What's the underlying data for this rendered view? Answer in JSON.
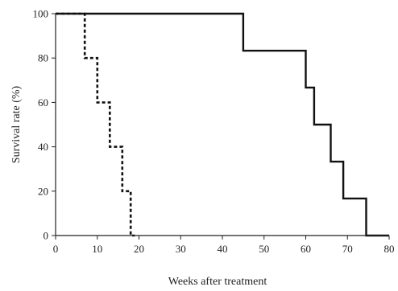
{
  "chart_data": {
    "type": "line",
    "title": "",
    "xlabel": "Weeks after treatment",
    "ylabel": "Survival rate (%)",
    "xlim": [
      0,
      80
    ],
    "ylim": [
      0,
      100
    ],
    "x_ticks": [
      0,
      10,
      20,
      30,
      40,
      50,
      60,
      70,
      80
    ],
    "y_ticks": [
      0,
      20,
      40,
      60,
      80,
      100
    ],
    "step": true,
    "grid": false,
    "series": [
      {
        "style": "solid",
        "color": "#111111",
        "x": [
          0,
          45,
          45,
          60,
          60,
          62,
          62,
          66,
          66,
          69,
          69,
          74.5,
          74.5,
          80
        ],
        "y": [
          100,
          100,
          83.3,
          83.3,
          66.7,
          66.7,
          50,
          50,
          33.3,
          33.3,
          16.7,
          16.7,
          0,
          0
        ]
      },
      {
        "style": "dashed",
        "color": "#111111",
        "x": [
          0,
          7,
          7,
          10,
          10,
          13,
          13,
          16,
          16,
          18,
          18,
          19
        ],
        "y": [
          100,
          100,
          80,
          80,
          60,
          60,
          40,
          40,
          20,
          20,
          0,
          0
        ]
      }
    ]
  }
}
